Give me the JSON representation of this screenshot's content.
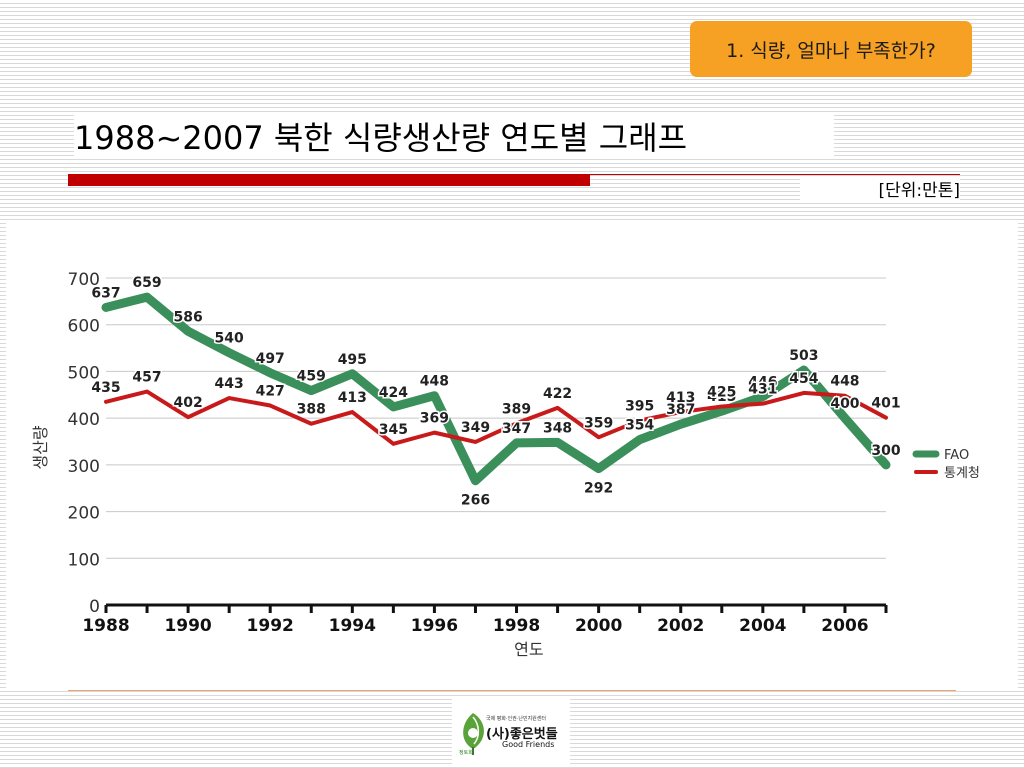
{
  "header": {
    "badge": "1. 식량, 얼마나 부족한가?",
    "title": "1988~2007 북한 식량생산량 연도별 그래프",
    "unit": "[단위:만톤]"
  },
  "logo": {
    "org_line": "국제 평화·인권·난민지원센터",
    "name": "(사)좋은벗들",
    "english": "Good Friends",
    "small_label": "정토회"
  },
  "chart_data": {
    "type": "line",
    "x": [
      1988,
      1989,
      1990,
      1991,
      1992,
      1993,
      1994,
      1995,
      1996,
      1997,
      1998,
      1999,
      2000,
      2001,
      2002,
      2003,
      2004,
      2005,
      2006,
      2007
    ],
    "series": [
      {
        "name": "FAO",
        "color": "#3a8f5a",
        "values": [
          637,
          659,
          586,
          540,
          497,
          459,
          495,
          424,
          448,
          266,
          347,
          348,
          292,
          354,
          387,
          415,
          446,
          503,
          400,
          300
        ]
      },
      {
        "name": "통계청",
        "color": "#c81a1a",
        "values": [
          435,
          457,
          402,
          443,
          427,
          388,
          413,
          345,
          369,
          349,
          389,
          422,
          359,
          395,
          413,
          425,
          431,
          454,
          448,
          401
        ]
      }
    ],
    "y_ticks": [
      "0",
      "100",
      "200",
      "300",
      "400",
      "500",
      "600",
      "700"
    ],
    "x_ticks": [
      "1988",
      "1990",
      "1992",
      "1994",
      "1996",
      "1998",
      "2000",
      "2002",
      "2004",
      "2006"
    ],
    "xlabel": "연도",
    "ylabel": "생산량",
    "ylim": [
      0,
      700
    ],
    "xlim": [
      1988,
      2007
    ],
    "grid": true,
    "legend_position": "right"
  }
}
